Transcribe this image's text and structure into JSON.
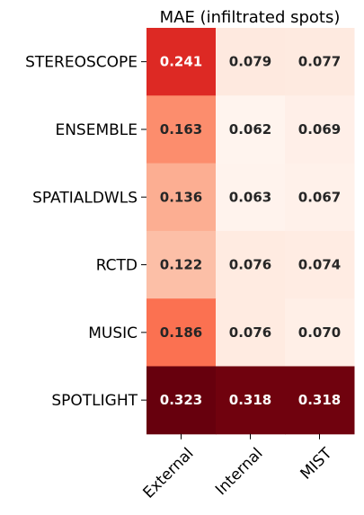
{
  "chart_data": {
    "type": "heatmap",
    "title": "MAE (infiltrated spots)",
    "rows": [
      "STEREOSCOPE",
      "ENSEMBLE",
      "SPATIALDWLS",
      "RCTD",
      "MUSIC",
      "SPOTLIGHT"
    ],
    "columns": [
      "External",
      "Internal",
      "MIST"
    ],
    "values": [
      [
        0.241,
        0.079,
        0.077
      ],
      [
        0.163,
        0.062,
        0.069
      ],
      [
        0.136,
        0.063,
        0.067
      ],
      [
        0.122,
        0.076,
        0.074
      ],
      [
        0.186,
        0.076,
        0.07
      ],
      [
        0.323,
        0.318,
        0.318
      ]
    ],
    "value_labels": [
      [
        "0.241",
        "0.079",
        "0.077"
      ],
      [
        "0.163",
        "0.062",
        "0.069"
      ],
      [
        "0.136",
        "0.063",
        "0.067"
      ],
      [
        "0.122",
        "0.076",
        "0.074"
      ],
      [
        "0.186",
        "0.076",
        "0.070"
      ],
      [
        "0.323",
        "0.318",
        "0.318"
      ]
    ],
    "colormap": "Reds",
    "color_range": [
      0.06,
      0.323
    ],
    "xlabel": "",
    "ylabel": ""
  }
}
